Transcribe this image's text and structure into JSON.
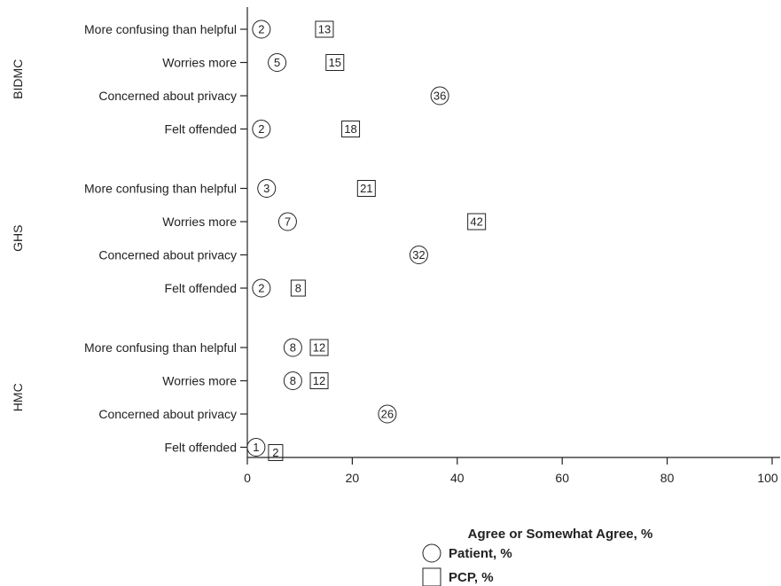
{
  "chart_data": {
    "type": "scatter",
    "xlabel": "Agree or Somewhat Agree, %",
    "xlim": [
      0,
      100
    ],
    "xticks": [
      0,
      20,
      40,
      60,
      80,
      100
    ],
    "groups": [
      {
        "name": "BIDMC",
        "rows": [
          {
            "label": "More confusing than helpful",
            "patient": 2,
            "pcp": 13
          },
          {
            "label": "Worries more",
            "patient": 5,
            "pcp": 15
          },
          {
            "label": "Concerned about privacy",
            "patient": 36,
            "pcp": null
          },
          {
            "label": "Felt offended",
            "patient": 2,
            "pcp": 18
          }
        ]
      },
      {
        "name": "GHS",
        "rows": [
          {
            "label": "More confusing than helpful",
            "patient": 3,
            "pcp": 21
          },
          {
            "label": "Worries more",
            "patient": 7,
            "pcp": 42
          },
          {
            "label": "Concerned about privacy",
            "patient": 32,
            "pcp": null
          },
          {
            "label": "Felt offended",
            "patient": 2,
            "pcp": 8
          }
        ]
      },
      {
        "name": "HMC",
        "rows": [
          {
            "label": "More confusing than helpful",
            "patient": 8,
            "pcp": 12
          },
          {
            "label": "Worries more",
            "patient": 8,
            "pcp": 12
          },
          {
            "label": "Concerned about privacy",
            "patient": 26,
            "pcp": null
          },
          {
            "label": "Felt offended",
            "patient": 1,
            "pcp": 2
          }
        ]
      }
    ],
    "legend": [
      {
        "name": "Patient, %",
        "marker": "circle"
      },
      {
        "name": "PCP, %",
        "marker": "square"
      }
    ],
    "legend_position": "bottom-center",
    "grid": false
  }
}
